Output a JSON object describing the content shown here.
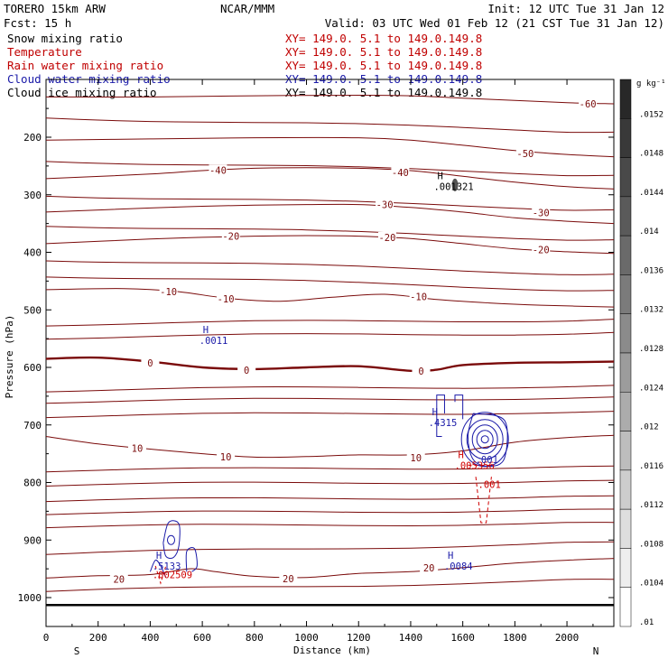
{
  "header": {
    "model": "TORERO  15km ARW",
    "org": "NCAR/MMM",
    "init": "Init: 12 UTC Tue 31 Jan 12",
    "fcst": "Fcst:   15 h",
    "valid": "Valid: 03 UTC Wed 01 Feb 12 (21 CST Tue 31 Jan 12)"
  },
  "legend": [
    {
      "label": "Snow mixing ratio",
      "color": "#000000",
      "xy": "XY= 149.0.  5.1 to 149.0.149.8"
    },
    {
      "label": "Temperature",
      "color": "#c00000",
      "xy": "XY= 149.0.  5.1 to 149.0.149.8"
    },
    {
      "label": "Rain water mixing ratio",
      "color": "#c00000",
      "xy": "XY= 149.0.  5.1 to 149.0.149.8"
    },
    {
      "label": "Cloud water mixing ratio",
      "color": "#1a1aa8",
      "xy": "XY= 149.0.  5.1 to 149.0.149.8"
    },
    {
      "label": "Cloud ice mixing ratio",
      "color": "#000000",
      "xy": "XY= 149.0.  5.1 to 149.0.149.8"
    }
  ],
  "chart_data": {
    "type": "contour cross-section",
    "xlabel": "Distance (km)",
    "ylabel": "Pressure (hPa)",
    "xlim": [
      0,
      2180
    ],
    "ylim": [
      1045,
      100
    ],
    "x_ticks": [
      0,
      200,
      400,
      600,
      800,
      1000,
      1200,
      1400,
      1600,
      1800,
      2000
    ],
    "y_ticks": [
      200,
      300,
      400,
      500,
      600,
      700,
      800,
      900,
      1000
    ],
    "x_end_labels": {
      "left": "S",
      "right": "N"
    },
    "temperature_contours": [
      {
        "value": -60,
        "label": "-60",
        "label_x": 2080,
        "label_p": 142,
        "points": [
          [
            0,
            130
          ],
          [
            400,
            130
          ],
          [
            800,
            128
          ],
          [
            1200,
            127
          ],
          [
            1400,
            128
          ],
          [
            1600,
            132
          ],
          [
            1800,
            136
          ],
          [
            2000,
            140
          ],
          [
            2180,
            142
          ]
        ]
      },
      {
        "value": -50,
        "label": "-50",
        "label_x": 1840,
        "label_p": 228,
        "points": [
          [
            0,
            205
          ],
          [
            400,
            203
          ],
          [
            800,
            201
          ],
          [
            1200,
            201
          ],
          [
            1400,
            205
          ],
          [
            1600,
            214
          ],
          [
            1800,
            223
          ],
          [
            2000,
            230
          ],
          [
            2180,
            234
          ]
        ]
      },
      {
        "value": -40,
        "label": "-40",
        "label_x": 660,
        "label_p": 257,
        "points": [
          [
            0,
            272
          ],
          [
            400,
            264
          ],
          [
            600,
            258
          ],
          [
            800,
            254
          ],
          [
            1000,
            253
          ],
          [
            1200,
            254
          ],
          [
            1400,
            258
          ],
          [
            1600,
            268
          ],
          [
            1800,
            278
          ],
          [
            2000,
            286
          ],
          [
            2180,
            290
          ]
        ]
      },
      {
        "value": -40,
        "label": "-40",
        "label_x": 1360,
        "label_p": 261,
        "points": []
      },
      {
        "value": -30,
        "label": "-30",
        "label_x": 1300,
        "label_p": 317,
        "points": [
          [
            0,
            330
          ],
          [
            400,
            323
          ],
          [
            600,
            320
          ],
          [
            800,
            318
          ],
          [
            1000,
            317
          ],
          [
            1200,
            317
          ],
          [
            1400,
            322
          ],
          [
            1600,
            330
          ],
          [
            1800,
            340
          ],
          [
            2000,
            346
          ],
          [
            2180,
            350
          ]
        ]
      },
      {
        "value": -30,
        "label": "-30",
        "label_x": 1900,
        "label_p": 331,
        "points": []
      },
      {
        "value": -20,
        "label": "-20",
        "label_x": 710,
        "label_p": 372,
        "points": [
          [
            0,
            385
          ],
          [
            400,
            377
          ],
          [
            600,
            374
          ],
          [
            800,
            372
          ],
          [
            1000,
            371
          ],
          [
            1200,
            372
          ],
          [
            1400,
            376
          ],
          [
            1600,
            385
          ],
          [
            1800,
            394
          ],
          [
            2000,
            399
          ],
          [
            2180,
            402
          ]
        ]
      },
      {
        "value": -20,
        "label": "-20",
        "label_x": 1310,
        "label_p": 374,
        "points": []
      },
      {
        "value": -20,
        "label": "-20",
        "label_x": 1900,
        "label_p": 395,
        "points": []
      },
      {
        "value": -10,
        "label": "-10",
        "label_x": 470,
        "label_p": 468,
        "points": [
          [
            0,
            465
          ],
          [
            300,
            463
          ],
          [
            500,
            468
          ],
          [
            700,
            480
          ],
          [
            900,
            485
          ],
          [
            1100,
            478
          ],
          [
            1300,
            473
          ],
          [
            1500,
            482
          ],
          [
            1700,
            488
          ],
          [
            1900,
            492
          ],
          [
            2180,
            495
          ]
        ]
      },
      {
        "value": -10,
        "label": "-10",
        "label_x": 690,
        "label_p": 481,
        "points": []
      },
      {
        "value": -10,
        "label": "-10",
        "label_x": 1430,
        "label_p": 477,
        "points": []
      },
      {
        "value": 0,
        "label": "0",
        "label_x": 400,
        "label_p": 592,
        "points": [
          [
            0,
            585
          ],
          [
            200,
            583
          ],
          [
            400,
            590
          ],
          [
            600,
            600
          ],
          [
            800,
            603
          ],
          [
            1000,
            600
          ],
          [
            1200,
            598
          ],
          [
            1400,
            606
          ],
          [
            1500,
            604
          ],
          [
            1600,
            596
          ],
          [
            1800,
            592
          ],
          [
            2000,
            591
          ],
          [
            2180,
            590
          ]
        ]
      },
      {
        "value": 0,
        "label": "0",
        "label_x": 770,
        "label_p": 605,
        "points": []
      },
      {
        "value": 0,
        "label": "0",
        "label_x": 1440,
        "label_p": 606,
        "points": []
      },
      {
        "value": 10,
        "label": "10",
        "label_x": 350,
        "label_p": 740,
        "points": [
          [
            0,
            720
          ],
          [
            200,
            733
          ],
          [
            400,
            742
          ],
          [
            600,
            750
          ],
          [
            800,
            756
          ],
          [
            1000,
            755
          ],
          [
            1200,
            752
          ],
          [
            1400,
            752
          ],
          [
            1600,
            745
          ],
          [
            1800,
            730
          ],
          [
            2000,
            722
          ],
          [
            2180,
            718
          ]
        ]
      },
      {
        "value": 10,
        "label": "10",
        "label_x": 690,
        "label_p": 755,
        "points": []
      },
      {
        "value": 10,
        "label": "10",
        "label_x": 1420,
        "label_p": 757,
        "points": []
      },
      {
        "value": 20,
        "label": "20",
        "label_x": 280,
        "label_p": 968,
        "points": [
          [
            0,
            966
          ],
          [
            200,
            962
          ],
          [
            400,
            960
          ],
          [
            550,
            950
          ],
          [
            650,
            955
          ],
          [
            800,
            963
          ],
          [
            1000,
            965
          ],
          [
            1200,
            958
          ],
          [
            1400,
            955
          ],
          [
            1600,
            948
          ],
          [
            1800,
            940
          ],
          [
            2000,
            935
          ],
          [
            2180,
            932
          ]
        ]
      },
      {
        "value": 20,
        "label": "20",
        "label_x": 930,
        "label_p": 967,
        "points": []
      },
      {
        "value": 20,
        "label": "20",
        "label_x": 1470,
        "label_p": 948,
        "points": []
      }
    ],
    "extra_temperature_lines_p_at_left": [
      165,
      240,
      300,
      352,
      412,
      440,
      525,
      548,
      640,
      660,
      685,
      780,
      805,
      832,
      855,
      878,
      925,
      990
    ],
    "maxima_labels": [
      {
        "field": "snow",
        "mark": "H",
        "value": ".001321",
        "x": 1530,
        "p": 290
      },
      {
        "field": "cloud water",
        "mark": "H",
        "value": ".0011",
        "x": 630,
        "p": 558
      },
      {
        "field": "cloud water",
        "mark": "H",
        "value": ".4315",
        "x": 1510,
        "p": 700
      },
      {
        "field": "rain",
        "mark": "H",
        "value": ".005356",
        "x": 1610,
        "p": 775
      },
      {
        "field": "cloud water",
        "mark": "",
        "value": ".001",
        "x": 1690,
        "p": 765
      },
      {
        "field": "rain",
        "mark": "",
        "value": ".001",
        "x": 1700,
        "p": 808
      },
      {
        "field": "cloud water",
        "mark": "H",
        "value": ".5133",
        "x": 450,
        "p": 950
      },
      {
        "field": "rain",
        "mark": "",
        "value": ".002509",
        "x": 450,
        "p": 965
      },
      {
        "field": "cloud water",
        "mark": "H",
        "value": ".0084",
        "x": 1570,
        "p": 950
      }
    ],
    "colorbar": {
      "unit": "g kg⁻¹",
      "ticks": [
        ".0152",
        ".0148",
        ".0144",
        ".014",
        ".0136",
        ".0132",
        ".0128",
        ".0124",
        ".012",
        ".0116",
        ".0112",
        ".0108",
        ".0104",
        ".01"
      ]
    }
  }
}
